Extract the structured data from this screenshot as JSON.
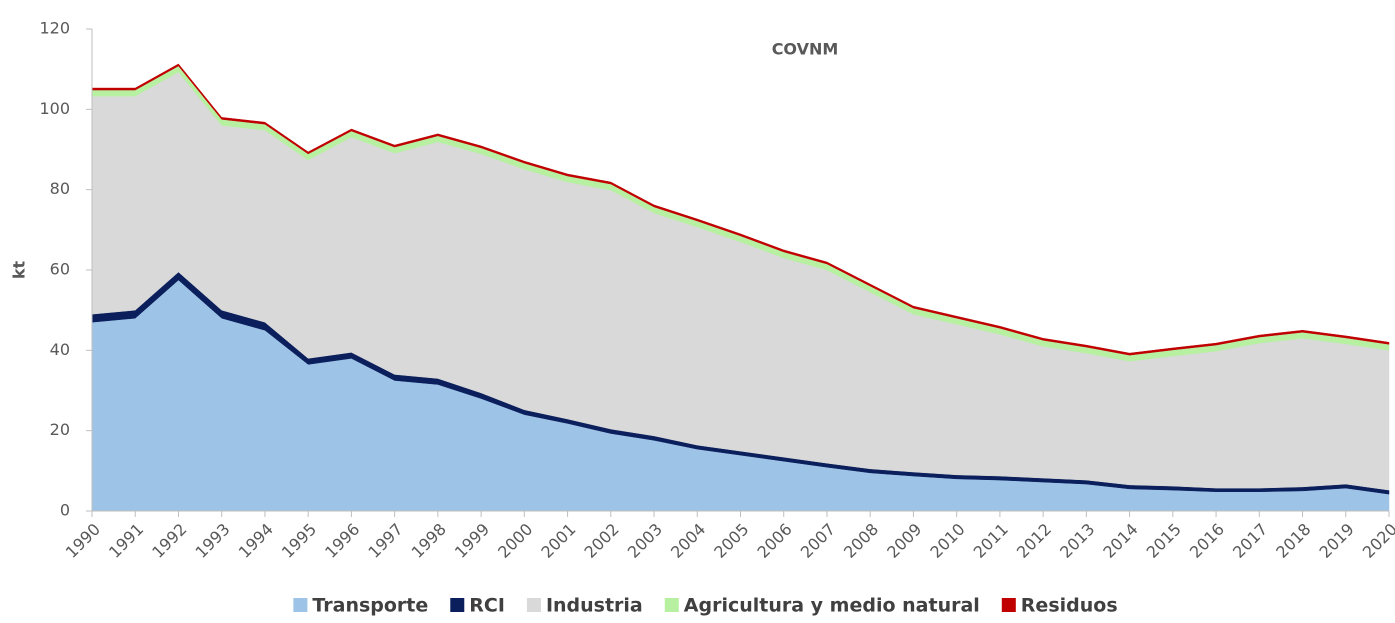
{
  "chart_data": {
    "type": "stacked_area",
    "title": "COVNM",
    "y_label": "kt",
    "x": [
      1990,
      1991,
      1992,
      1993,
      1994,
      1995,
      1996,
      1997,
      1998,
      1999,
      2000,
      2001,
      2002,
      2003,
      2004,
      2005,
      2006,
      2007,
      2008,
      2009,
      2010,
      2011,
      2012,
      2013,
      2014,
      2015,
      2016,
      2017,
      2018,
      2019,
      2020
    ],
    "xlim": [
      1990,
      2020
    ],
    "ylim": [
      0,
      120
    ],
    "yticks": [
      0,
      20,
      40,
      60,
      80,
      100,
      120
    ],
    "grid": false,
    "series": [
      {
        "name": "Transporte",
        "color": "#9dc3e6",
        "values": [
          47,
          48,
          57.5,
          48,
          45,
          36.5,
          38,
          32.5,
          31.5,
          28,
          24,
          21.8,
          19.3,
          17.6,
          15.4,
          13.9,
          12.4,
          10.9,
          9.5,
          8.7,
          8,
          7.7,
          7.2,
          6.7,
          5.5,
          5.2,
          4.8,
          4.8,
          5,
          5.7,
          4.2
        ]
      },
      {
        "name": "RCI",
        "color": "#0a1f5c",
        "values": [
          2,
          2,
          2,
          2,
          2,
          1.5,
          1.5,
          1.5,
          1.5,
          1.4,
          1.2,
          1.1,
          1.1,
          1.1,
          1,
          1,
          1,
          1,
          1,
          1,
          1,
          1,
          1,
          1,
          1,
          1,
          0.9,
          0.9,
          1,
          1,
          1
        ]
      },
      {
        "name": "Industria",
        "color": "#d9d9d9",
        "values": [
          54.3,
          53.3,
          49.8,
          46,
          47.8,
          49.4,
          53.6,
          55.1,
          58.9,
          59.5,
          59.9,
          59,
          59.5,
          55.5,
          54.3,
          52.1,
          49.6,
          48.1,
          44,
          39.3,
          37.5,
          35.3,
          32.8,
          31.6,
          30.8,
          32.4,
          34.1,
          36.1,
          37,
          34.9,
          34.8
        ]
      },
      {
        "name": "Agricultura y medio natural",
        "color": "#b6f0a0",
        "values": [
          1.5,
          1.5,
          1.5,
          1.5,
          1.5,
          1.5,
          1.5,
          1.5,
          1.5,
          1.5,
          1.5,
          1.5,
          1.5,
          1.5,
          1.5,
          1.5,
          1.5,
          1.5,
          1.5,
          1.5,
          1.5,
          1.5,
          1.5,
          1.5,
          1.5,
          1.5,
          1.5,
          1.5,
          1.5,
          1.5,
          1.5
        ]
      },
      {
        "name": "Residuos",
        "color": "#c00000",
        "values": [
          0.5,
          0.5,
          0.5,
          0.5,
          0.5,
          0.5,
          0.5,
          0.5,
          0.5,
          0.5,
          0.5,
          0.5,
          0.5,
          0.5,
          0.5,
          0.5,
          0.5,
          0.5,
          0.5,
          0.5,
          0.5,
          0.5,
          0.5,
          0.5,
          0.5,
          0.5,
          0.5,
          0.5,
          0.5,
          0.5,
          0.5
        ]
      }
    ]
  }
}
